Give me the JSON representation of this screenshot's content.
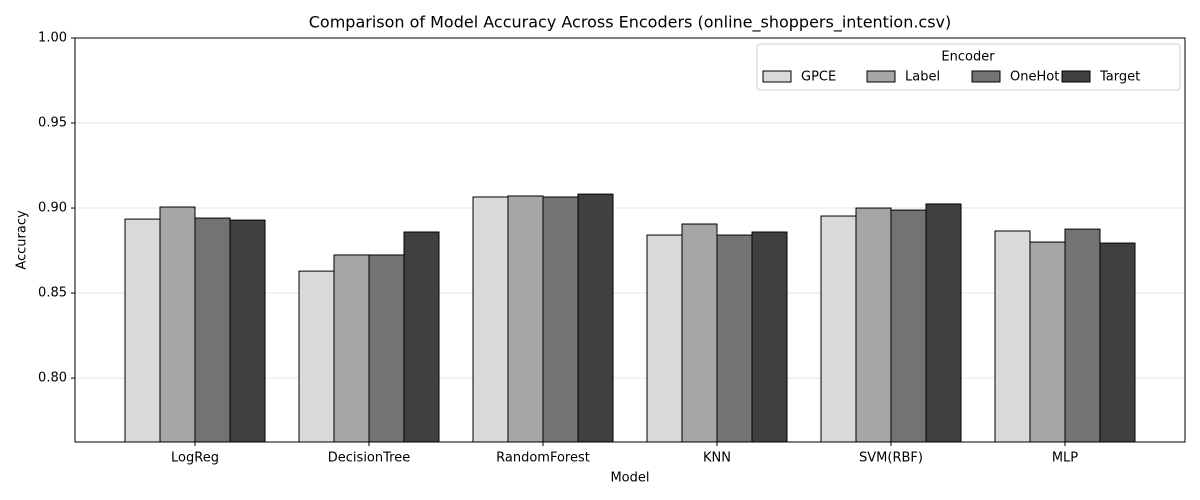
{
  "chart_data": {
    "type": "bar",
    "title": "Comparison of Model Accuracy Across Encoders (online_shoppers_intention.csv)",
    "x_label": "Model",
    "y_label": "Accuracy",
    "legend_title": "Encoder",
    "legend_position": "upper right",
    "categories": [
      "LogReg",
      "DecisionTree",
      "RandomForest",
      "KNN",
      "SVM(RBF)",
      "MLP"
    ],
    "series": [
      {
        "name": "GPCE",
        "color": "#d9d9d9",
        "values": [
          0.8935,
          0.8629,
          0.9065,
          0.8841,
          0.8953,
          0.8865
        ]
      },
      {
        "name": "Label",
        "color": "#a6a6a6",
        "values": [
          0.9006,
          0.8724,
          0.9071,
          0.8906,
          0.9,
          0.88
        ]
      },
      {
        "name": "OneHot",
        "color": "#737373",
        "values": [
          0.8941,
          0.8724,
          0.9065,
          0.8841,
          0.8988,
          0.8876
        ]
      },
      {
        "name": "Target",
        "color": "#404040",
        "values": [
          0.8929,
          0.8859,
          0.9082,
          0.8859,
          0.9024,
          0.8794
        ]
      }
    ],
    "ylim": [
      0.7624,
      1.0
    ],
    "yticks": [
      {
        "value": 0.8,
        "label": "0.80"
      },
      {
        "value": 0.85,
        "label": "0.85"
      },
      {
        "value": 0.9,
        "label": "0.90"
      },
      {
        "value": 0.95,
        "label": "0.95"
      },
      {
        "value": 1.0,
        "label": "1.00"
      }
    ],
    "grid": true
  }
}
